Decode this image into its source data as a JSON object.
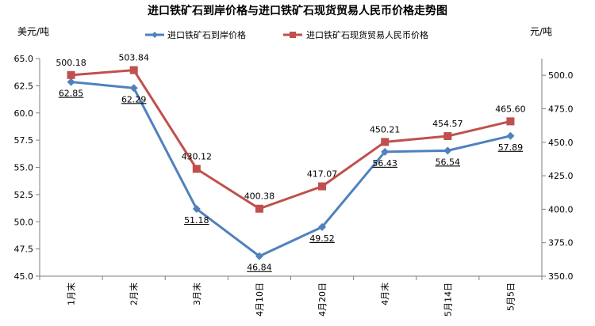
{
  "chart_data": {
    "type": "line",
    "title": "进口铁矿石到岸价格与进口铁矿石现货贸易人民币价格走势图",
    "categories": [
      "1月末",
      "2月末",
      "3月末",
      "4月10日",
      "4月20日",
      "4月末",
      "5月14日",
      "5月5日"
    ],
    "y_left_unit": "美元/吨",
    "y_right_unit": "元/吨",
    "y_left": {
      "min": 45.0,
      "max": 65.0,
      "step": 2.5,
      "ticks": [
        "65.0",
        "62.5",
        "60.0",
        "57.5",
        "55.0",
        "52.5",
        "50.0",
        "47.5",
        "45.0"
      ]
    },
    "y_right": {
      "min": 350.0,
      "max": 512.5,
      "step": 25,
      "ticks": [
        "500.0",
        "475.0",
        "450.0",
        "425.0",
        "400.0",
        "375.0",
        "350.0"
      ]
    },
    "series": [
      {
        "name": "进口铁矿石到岸价格",
        "axis": "left",
        "color": "#4f81bd",
        "marker": "diamond",
        "values": [
          62.85,
          62.29,
          51.18,
          46.84,
          49.52,
          56.43,
          56.54,
          57.89
        ],
        "labels": [
          "62.85",
          "62.29",
          "51.18",
          "46.84",
          "49.52",
          "56.43",
          "56.54",
          "57.89"
        ]
      },
      {
        "name": "进口铁矿石现货贸易人民币价格",
        "axis": "right",
        "color": "#c0504d",
        "marker": "square",
        "values": [
          500.18,
          503.84,
          430.12,
          400.38,
          417.07,
          450.21,
          454.57,
          465.6
        ],
        "labels": [
          "500.18",
          "503.84",
          "430.12",
          "400.38",
          "417.07",
          "450.21",
          "454.57",
          "465.60"
        ]
      }
    ],
    "legend_position": "top",
    "grid": false
  }
}
